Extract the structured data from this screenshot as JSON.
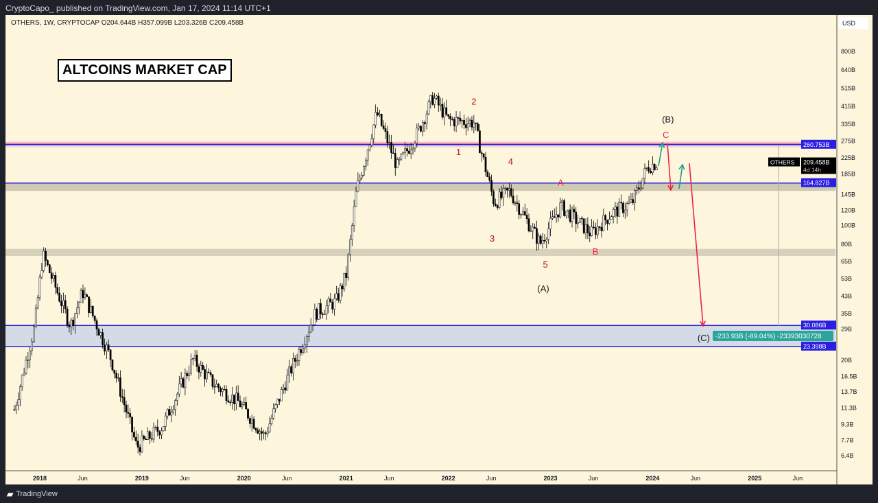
{
  "header": {
    "publish_text": "CryptoCapo_  published on TradingView.com, Jan 17, 2024 11:14 UTC+1"
  },
  "legend": {
    "text": "OTHERS, 1W, CRYPTOCAP  O204.644B  H357.099B  L203.326B  C209.458B"
  },
  "title": "ALTCOINS MARKET CAP",
  "footer": {
    "brand": "TradingView",
    "logo": "17"
  },
  "colors": {
    "bg": "#fdf5dc",
    "up": "#ffffff",
    "down": "#000000",
    "level": "#2a1ee0",
    "arrow_down": "#f0204a",
    "arrow_up": "#1a9e8a"
  },
  "chart_data": {
    "type": "candlestick",
    "symbol": "OTHERS",
    "timeframe": "1W",
    "scale": "log",
    "currency": "USD",
    "ylim": [
      5.8,
      1000
    ],
    "xlim": [
      2017.75,
      2025.85
    ],
    "y_ticks": [
      "800B",
      "640B",
      "515B",
      "415B",
      "335B",
      "275B",
      "225B",
      "185B",
      "145B",
      "120B",
      "100B",
      "80B",
      "65B",
      "53B",
      "43B",
      "35B",
      "29B",
      "20B",
      "16.5B",
      "13.7B",
      "11.3B",
      "9.3B",
      "7.7B",
      "6.4B"
    ],
    "y_tick_values": [
      800,
      640,
      515,
      415,
      335,
      275,
      225,
      185,
      145,
      120,
      100,
      80,
      65,
      53,
      43,
      35,
      29,
      20,
      16.5,
      13.7,
      11.3,
      9.3,
      7.7,
      6.4
    ],
    "x_ticks": [
      {
        "label": "2018",
        "x": 2018,
        "bold": true
      },
      {
        "label": "Jun",
        "x": 2018.42
      },
      {
        "label": "2019",
        "x": 2019,
        "bold": true
      },
      {
        "label": "Jun",
        "x": 2019.42
      },
      {
        "label": "2020",
        "x": 2020,
        "bold": true
      },
      {
        "label": "Jun",
        "x": 2020.42
      },
      {
        "label": "2021",
        "x": 2021,
        "bold": true
      },
      {
        "label": "Jun",
        "x": 2021.42
      },
      {
        "label": "2022",
        "x": 2022,
        "bold": true
      },
      {
        "label": "Jun",
        "x": 2022.42
      },
      {
        "label": "2023",
        "x": 2023,
        "bold": true
      },
      {
        "label": "Jun",
        "x": 2023.42
      },
      {
        "label": "2024",
        "x": 2024,
        "bold": true
      },
      {
        "label": "Jun",
        "x": 2024.42
      },
      {
        "label": "2025",
        "x": 2025,
        "bold": true
      },
      {
        "label": "Jun",
        "x": 2025.42
      }
    ],
    "price_path": [
      [
        2017.75,
        11
      ],
      [
        2017.95,
        30
      ],
      [
        2018.03,
        70
      ],
      [
        2018.3,
        30
      ],
      [
        2018.42,
        45
      ],
      [
        2018.7,
        20
      ],
      [
        2018.95,
        7
      ],
      [
        2019.2,
        9
      ],
      [
        2019.5,
        20
      ],
      [
        2019.7,
        15
      ],
      [
        2019.95,
        12
      ],
      [
        2020.2,
        8
      ],
      [
        2020.4,
        15
      ],
      [
        2020.7,
        35
      ],
      [
        2020.9,
        40
      ],
      [
        2021.0,
        55
      ],
      [
        2021.1,
        150
      ],
      [
        2021.3,
        380
      ],
      [
        2021.5,
        200
      ],
      [
        2021.7,
        300
      ],
      [
        2021.85,
        460
      ],
      [
        2022.0,
        350
      ],
      [
        2022.25,
        340
      ],
      [
        2022.45,
        130
      ],
      [
        2022.6,
        150
      ],
      [
        2022.9,
        80
      ],
      [
        2023.1,
        125
      ],
      [
        2023.4,
        90
      ],
      [
        2023.6,
        115
      ],
      [
        2023.8,
        130
      ],
      [
        2023.95,
        200
      ],
      [
        2024.04,
        209.458
      ]
    ],
    "levels": [
      {
        "label": "260.753B",
        "value": 260.753
      },
      {
        "label": "164.827B",
        "value": 164.827
      },
      {
        "label": "30.086B",
        "value": 30.086
      },
      {
        "label": "23.398B",
        "value": 23.398
      }
    ],
    "zones": [
      {
        "from": 150,
        "to": 164.8,
        "color": "#c8c2ae"
      },
      {
        "from": 69,
        "to": 75,
        "color": "#d0c9b5"
      },
      {
        "from": 23.398,
        "to": 30.086,
        "color": "#ccd6e8"
      },
      {
        "from": 253,
        "to": 270,
        "color": "#f6c9cf"
      }
    ],
    "last_price": {
      "symbol": "OTHERS",
      "label": "209.458B",
      "countdown": "4d 14h",
      "value": 209.458
    },
    "currency_label": "USD",
    "measure": {
      "label": "-233.93B (-89.04%) -23393030728"
    },
    "wave_labels": [
      {
        "text": "2",
        "x": 2022.25,
        "v": 420,
        "color": "#b3141e"
      },
      {
        "text": "1",
        "x": 2022.1,
        "v": 230,
        "color": "#b3141e"
      },
      {
        "text": "4",
        "x": 2022.61,
        "v": 205,
        "color": "#b3141e"
      },
      {
        "text": "3",
        "x": 2022.43,
        "v": 82,
        "color": "#b3141e"
      },
      {
        "text": "5",
        "x": 2022.95,
        "v": 60,
        "color": "#b3141e"
      },
      {
        "text": "(A)",
        "x": 2022.93,
        "v": 45,
        "color": "#131722"
      },
      {
        "text": "A",
        "x": 2023.1,
        "v": 160,
        "color": "#f0204a"
      },
      {
        "text": "B",
        "x": 2023.44,
        "v": 70,
        "color": "#f0204a"
      },
      {
        "text": "(B)",
        "x": 2024.15,
        "v": 340,
        "color": "#131722"
      },
      {
        "text": "C",
        "x": 2024.13,
        "v": 282,
        "color": "#f0204a"
      },
      {
        "text": "(C)",
        "x": 2024.5,
        "v": 25,
        "color": "#131722"
      }
    ]
  }
}
